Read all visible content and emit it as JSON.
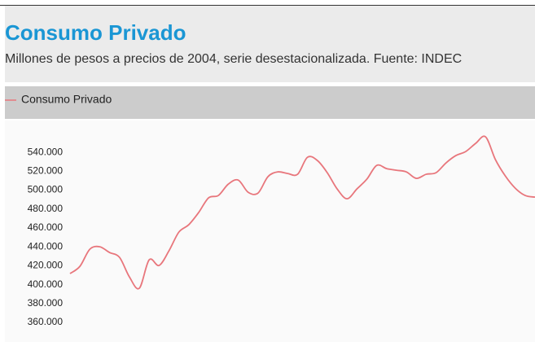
{
  "chart_data": {
    "type": "line",
    "title": "Consumo Privado",
    "subtitle": "Millones de pesos a precios de 2004, serie desestacionalizada. Fuente: INDEC",
    "series": [
      {
        "name": "Consumo Privado",
        "color": "#e8767c",
        "values": [
          411700,
          419400,
          437500,
          440100,
          434000,
          428900,
          408200,
          396200,
          426300,
          420300,
          435800,
          455600,
          463400,
          476300,
          491800,
          494400,
          506400,
          510700,
          497800,
          496900,
          514200,
          519300,
          517600,
          516800,
          534800,
          531400,
          518500,
          501300,
          490900,
          501300,
          511600,
          526200,
          522800,
          521100,
          519300,
          512500,
          516800,
          518500,
          528800,
          536600,
          540900,
          549500,
          556400,
          532300,
          515000,
          502100,
          494400,
          492600
        ]
      }
    ],
    "ylim": [
      348000,
      572000
    ],
    "yticks": [
      {
        "value": 360000,
        "label": "360.000"
      },
      {
        "value": 380000,
        "label": "380.000"
      },
      {
        "value": 400000,
        "label": "400.000"
      },
      {
        "value": 420000,
        "label": "420.000"
      },
      {
        "value": 440000,
        "label": "440.000"
      },
      {
        "value": 460000,
        "label": "460.000"
      },
      {
        "value": 480000,
        "label": "480.000"
      },
      {
        "value": 500000,
        "label": "500.000"
      },
      {
        "value": 520000,
        "label": "520.000"
      },
      {
        "value": 540000,
        "label": "540.000"
      }
    ]
  }
}
